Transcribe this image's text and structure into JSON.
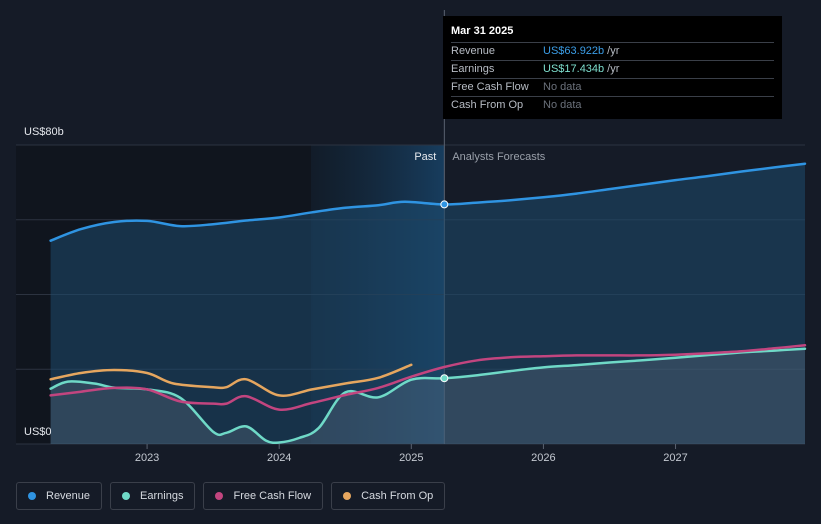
{
  "tooltip": {
    "date": "Mar 31 2025",
    "rows": [
      {
        "label": "Revenue",
        "value": "US$63.922b",
        "unit": "/yr",
        "color": "#3b9de6"
      },
      {
        "label": "Earnings",
        "value": "US$17.434b",
        "unit": "/yr",
        "color": "#7ee0cf"
      },
      {
        "label": "Free Cash Flow",
        "value": "No data",
        "unit": "",
        "color": ""
      },
      {
        "label": "Cash From Op",
        "value": "No data",
        "unit": "",
        "color": ""
      }
    ]
  },
  "chart_data": {
    "type": "line",
    "y_axis": {
      "top_label": "US$80b",
      "bottom_label": "US$0",
      "ylim": [
        0,
        80
      ]
    },
    "x_ticks": [
      "2023",
      "2024",
      "2025",
      "2026",
      "2027"
    ],
    "xlim": [
      2022.25,
      2027.98
    ],
    "divider_x": 2025.25,
    "past_label": "Past",
    "forecast_label": "Analysts Forecasts",
    "grid": true,
    "series": [
      {
        "name": "Revenue",
        "color": "#2f94e2",
        "points": [
          [
            2022.27,
            54.4
          ],
          [
            2022.5,
            57.5
          ],
          [
            2022.75,
            59.4
          ],
          [
            2023.0,
            59.7
          ],
          [
            2023.25,
            58.3
          ],
          [
            2023.5,
            58.8
          ],
          [
            2023.75,
            59.8
          ],
          [
            2024.0,
            60.6
          ],
          [
            2024.25,
            62.0
          ],
          [
            2024.5,
            63.2
          ],
          [
            2024.75,
            63.9
          ],
          [
            2024.95,
            64.8
          ],
          [
            2025.25,
            64.1
          ],
          [
            2025.5,
            64.6
          ],
          [
            2025.75,
            65.2
          ],
          [
            2026.0,
            66.0
          ],
          [
            2026.25,
            67.0
          ],
          [
            2026.5,
            68.2
          ],
          [
            2026.75,
            69.4
          ],
          [
            2027.0,
            70.6
          ],
          [
            2027.25,
            71.7
          ],
          [
            2027.5,
            72.9
          ],
          [
            2027.75,
            74.0
          ],
          [
            2027.98,
            75.0
          ]
        ]
      },
      {
        "name": "Earnings",
        "color": "#6fd9c7",
        "points": [
          [
            2022.27,
            14.8
          ],
          [
            2022.4,
            16.7
          ],
          [
            2022.6,
            16.2
          ],
          [
            2022.75,
            15.1
          ],
          [
            2023.0,
            14.6
          ],
          [
            2023.25,
            12.4
          ],
          [
            2023.5,
            3.3
          ],
          [
            2023.6,
            3.0
          ],
          [
            2023.75,
            4.7
          ],
          [
            2023.9,
            0.9
          ],
          [
            2024.0,
            0.4
          ],
          [
            2024.15,
            1.6
          ],
          [
            2024.3,
            4.3
          ],
          [
            2024.5,
            13.8
          ],
          [
            2024.75,
            12.5
          ],
          [
            2025.0,
            17.2
          ],
          [
            2025.25,
            17.6
          ],
          [
            2025.5,
            18.4
          ],
          [
            2025.75,
            19.5
          ],
          [
            2026.0,
            20.5
          ],
          [
            2026.25,
            21.1
          ],
          [
            2026.5,
            21.8
          ],
          [
            2026.75,
            22.4
          ],
          [
            2027.0,
            23.1
          ],
          [
            2027.25,
            23.8
          ],
          [
            2027.5,
            24.5
          ],
          [
            2027.75,
            25.0
          ],
          [
            2027.98,
            25.5
          ]
        ]
      },
      {
        "name": "Free Cash Flow",
        "color": "#c2457f",
        "points": [
          [
            2022.27,
            13.0
          ],
          [
            2022.5,
            14.0
          ],
          [
            2022.75,
            15.0
          ],
          [
            2023.0,
            14.6
          ],
          [
            2023.25,
            11.4
          ],
          [
            2023.5,
            10.8
          ],
          [
            2023.6,
            10.8
          ],
          [
            2023.75,
            12.8
          ],
          [
            2024.0,
            9.2
          ],
          [
            2024.25,
            11.0
          ],
          [
            2024.5,
            13.1
          ],
          [
            2024.75,
            15.0
          ],
          [
            2025.0,
            18.0
          ],
          [
            2025.25,
            20.6
          ],
          [
            2025.5,
            22.4
          ],
          [
            2025.75,
            23.2
          ],
          [
            2026.0,
            23.5
          ],
          [
            2026.25,
            23.7
          ],
          [
            2026.5,
            23.7
          ],
          [
            2026.75,
            23.7
          ],
          [
            2027.0,
            23.9
          ],
          [
            2027.25,
            24.3
          ],
          [
            2027.5,
            24.8
          ],
          [
            2027.75,
            25.6
          ],
          [
            2027.98,
            26.4
          ]
        ]
      },
      {
        "name": "Cash From Op",
        "color": "#e5a65f",
        "points": [
          [
            2022.27,
            17.3
          ],
          [
            2022.5,
            19.0
          ],
          [
            2022.75,
            19.8
          ],
          [
            2023.0,
            19.0
          ],
          [
            2023.2,
            16.2
          ],
          [
            2023.5,
            15.2
          ],
          [
            2023.6,
            15.2
          ],
          [
            2023.75,
            17.3
          ],
          [
            2024.0,
            13.0
          ],
          [
            2024.25,
            14.6
          ],
          [
            2024.5,
            16.2
          ],
          [
            2024.75,
            17.7
          ],
          [
            2025.0,
            21.2
          ]
        ]
      }
    ]
  },
  "legend": [
    {
      "label": "Revenue",
      "color": "#2f94e2"
    },
    {
      "label": "Earnings",
      "color": "#6fd9c7"
    },
    {
      "label": "Free Cash Flow",
      "color": "#c2457f"
    },
    {
      "label": "Cash From Op",
      "color": "#e5a65f"
    }
  ]
}
